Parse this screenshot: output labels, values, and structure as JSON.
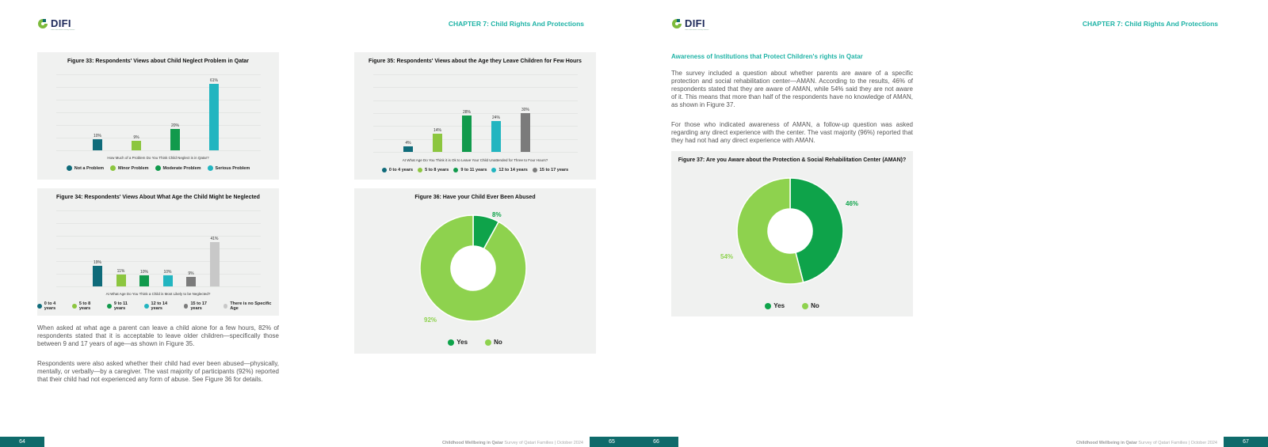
{
  "header": {
    "logo_text": "DIFI",
    "logo_sub": "Doha International Family Institute",
    "chapter_title": "CHAPTER 7: Child Rights And Protections"
  },
  "colors": {
    "teal_dark": "#0f6b7a",
    "lime": "#8cc63f",
    "green": "#119a4c",
    "cyan": "#22b5c0",
    "grey": "#7b7b7b",
    "light_grey": "#c8c8c8",
    "yes_green": "#0ea34a",
    "no_lime": "#8ed24e",
    "accent": "#1fb3a6",
    "footer_bg": "#0f6b6b"
  },
  "fig33": {
    "title": "Figure 33: Respondents' Views about Child Neglect Problem in Qatar",
    "axis_title": "How Much of a Problem Do You Think Child Neglect is in Qatar?",
    "chart_data": {
      "type": "bar",
      "categories": [
        "Not a Problem",
        "Minor Problem",
        "Moderate Problem",
        "Serious Problem"
      ],
      "values": [
        10,
        9,
        20,
        61
      ],
      "value_labels": [
        "10%",
        "9%",
        "20%",
        "61%"
      ],
      "colors": [
        "#0f6b7a",
        "#8cc63f",
        "#119a4c",
        "#22b5c0"
      ],
      "ylim": [
        0,
        70
      ]
    }
  },
  "fig34": {
    "title": "Figure 34: Respondents' Views About What Age the Child Might be Neglected",
    "axis_title": "At What Age Do You Think a Child is Most Likely to be Neglected?",
    "chart_data": {
      "type": "bar",
      "categories": [
        "0 to 4 years",
        "5 to 8 years",
        "9 to 11 years",
        "12 to 14 years",
        "15 to 17 years",
        "There is no Specific Age"
      ],
      "values": [
        19,
        11,
        10,
        10,
        9,
        41
      ],
      "value_labels": [
        "19%",
        "11%",
        "10%",
        "10%",
        "9%",
        "41%"
      ],
      "colors": [
        "#0f6b7a",
        "#8cc63f",
        "#119a4c",
        "#22b5c0",
        "#7b7b7b",
        "#c8c8c8"
      ],
      "ylim": [
        0,
        70
      ]
    }
  },
  "fig35": {
    "title": "Figure 35: Respondents' Views about the Age they Leave Children for Few Hours",
    "axis_title": "At What Age Do You Think it is Ok to Leave Your Child Unattended for Three to Four Hours?",
    "chart_data": {
      "type": "bar",
      "categories": [
        "0 to 4 years",
        "5 to 8 years",
        "9 to 11 years",
        "12 to 14 years",
        "15 to 17 years"
      ],
      "values": [
        4,
        14,
        28,
        24,
        30
      ],
      "value_labels": [
        "4%",
        "14%",
        "28%",
        "24%",
        "30%"
      ],
      "colors": [
        "#0f6b7a",
        "#8cc63f",
        "#119a4c",
        "#22b5c0",
        "#7b7b7b"
      ],
      "ylim": [
        0,
        60
      ]
    }
  },
  "fig36": {
    "title": "Figure 36: Have your Child Ever Been Abused",
    "chart_data": {
      "type": "pie",
      "categories": [
        "Yes",
        "No"
      ],
      "values": [
        8,
        92
      ],
      "value_labels": [
        "8%",
        "92%"
      ],
      "colors": [
        "#0ea34a",
        "#8ed24e"
      ]
    }
  },
  "fig37": {
    "title": "Figure 37: Are you Aware about the Protection & Social Rehabilitation Center (AMAN)?",
    "chart_data": {
      "type": "pie",
      "categories": [
        "Yes",
        "No"
      ],
      "values": [
        46,
        54
      ],
      "value_labels": [
        "46%",
        "54%"
      ],
      "colors": [
        "#0ea34a",
        "#8ed24e"
      ]
    }
  },
  "text": {
    "p65_para1": "When asked at what age a parent can leave a child alone for a few hours, 82% of respondents stated that it is acceptable to leave older children—specifically those between 9 and 17 years of age—as shown in Figure 35.",
    "p65_para2": "Respondents were also asked whether their child had ever been abused—physically, mentally, or verbally—by a caregiver. The vast majority of participants (92%) reported that their child had not experienced any form of abuse. See Figure 36 for details.",
    "p67_heading": "Awareness of Institutions that Protect Children's rights in Qatar",
    "p67_para1": "The survey included a question about whether parents are aware of a specific protection and social rehabilitation center—AMAN. According to the results, 46% of respondents stated that they are aware of AMAN, while 54% said they are not aware of it. This means that more than half of the respondents have no knowledge of AMAN, as shown in Figure 37.",
    "p67_para2": "For those who indicated awareness of AMAN, a follow-up question was asked regarding any direct experience with the center. The vast majority (96%) reported that they had not had any direct experience with AMAN."
  },
  "footer": {
    "title_bold": "Childhood Wellbeing in Qatar",
    "title_rest": " Survey of Qatari Families | October 2024",
    "page_64": "64",
    "page_65": "65",
    "page_66": "66",
    "page_67": "67"
  }
}
